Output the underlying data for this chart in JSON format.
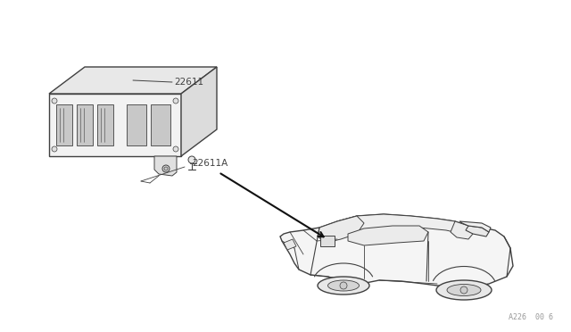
{
  "bg_color": "#ffffff",
  "line_color": "#404040",
  "label_color": "#404040",
  "watermark_text": "A226  00 6",
  "figsize": [
    6.4,
    3.72
  ],
  "dpi": 100
}
